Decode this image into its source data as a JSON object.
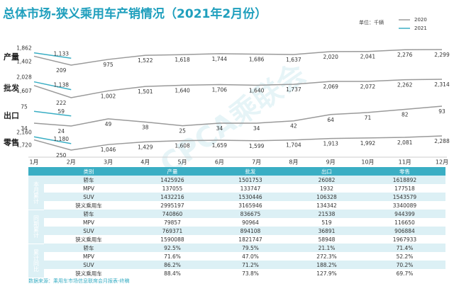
{
  "header": {
    "title": "总体市场-狭义乘用车产销情况（2021年2月份）",
    "unit": "单位：千辆",
    "watermark": "CPCA乘联会"
  },
  "chart_data": {
    "type": "line",
    "categories": [
      "1月",
      "2月",
      "3月",
      "4月",
      "5月",
      "6月",
      "7月",
      "8月",
      "9月",
      "10月",
      "11月",
      "12月"
    ],
    "legend": [
      {
        "name": "2020",
        "color": "#9a9a9a"
      },
      {
        "name": "2021",
        "color": "#3aaec4"
      }
    ],
    "panels": [
      {
        "label": "产量",
        "series": [
          {
            "values": [
              1402,
              209,
              975,
              1522,
              1618,
              1744,
              1686,
              1637,
              2020,
              2041,
              2276,
              2299
            ],
            "value_labels": [
              "1,402",
              "209",
              "975",
              "1,522",
              "1,618",
              "1,744",
              "1,686",
              "1,637",
              "2,020",
              "2,041",
              "2,276",
              "2,299"
            ]
          },
          {
            "values": [
              1862,
              1133,
              null,
              null,
              null,
              null,
              null,
              null,
              null,
              null,
              null,
              null
            ],
            "value_labels": [
              "1,862",
              "1,133",
              null,
              null,
              null,
              null,
              null,
              null,
              null,
              null,
              null,
              null
            ]
          }
        ]
      },
      {
        "label": "批发",
        "series": [
          {
            "values": [
              1607,
              222,
              1002,
              1501,
              1640,
              1706,
              1640,
              1737,
              2069,
              2072,
              2262,
              2314
            ],
            "value_labels": [
              "1,607",
              "222",
              "1,002",
              "1,501",
              "1,640",
              "1,706",
              "1,640",
              "1,737",
              "2,069",
              "2,072",
              "2,262",
              "2,314"
            ]
          },
          {
            "values": [
              2028,
              1138,
              null,
              null,
              null,
              null,
              null,
              null,
              null,
              null,
              null,
              null
            ],
            "value_labels": [
              "2,028",
              "1,138",
              null,
              null,
              null,
              null,
              null,
              null,
              null,
              null,
              null,
              null
            ]
          }
        ]
      },
      {
        "label": "出口",
        "series": [
          {
            "values": [
              34,
              24,
              49,
              38,
              25,
              34,
              34,
              42,
              64,
              71,
              82,
              93
            ]
          },
          {
            "values": [
              75,
              59,
              null,
              null,
              null,
              null,
              null,
              null,
              null,
              null,
              null,
              null
            ]
          }
        ]
      },
      {
        "label": "零售",
        "series": [
          {
            "values": [
              1720,
              250,
              1046,
              1429,
              1608,
              1659,
              1599,
              1704,
              1913,
              1992,
              2081,
              2288
            ],
            "value_labels": [
              "1,720",
              "250",
              "1,046",
              "1,429",
              "1,608",
              "1,659",
              "1,599",
              "1,704",
              "1,913",
              "1,992",
              "2,081",
              "2,288"
            ]
          },
          {
            "values": [
              2160,
              1180,
              null,
              null,
              null,
              null,
              null,
              null,
              null,
              null,
              null,
              null
            ],
            "value_labels": [
              "2,160",
              "1,180",
              null,
              null,
              null,
              null,
              null,
              null,
              null,
              null,
              null,
              null
            ]
          }
        ]
      }
    ]
  },
  "table": {
    "columns": [
      "类别",
      "产量",
      "批发",
      "出口",
      "零售"
    ],
    "groups": [
      {
        "label": "本月累计",
        "rows": [
          [
            "轿车",
            "1425926",
            "1501753",
            "26082",
            "1618892"
          ],
          [
            "MPV",
            "137055",
            "133747",
            "1932",
            "177518"
          ],
          [
            "SUV",
            "1432216",
            "1530446",
            "106328",
            "1543579"
          ],
          [
            "狭义乘用车",
            "2995197",
            "3165946",
            "134342",
            "3340089"
          ]
        ]
      },
      {
        "label": "同期累计",
        "rows": [
          [
            "轿车",
            "740860",
            "836675",
            "21538",
            "944399"
          ],
          [
            "MPV",
            "79857",
            "90964",
            "519",
            "116650"
          ],
          [
            "SUV",
            "769371",
            "894108",
            "36891",
            "906884"
          ],
          [
            "狭义乘用车",
            "1590088",
            "1821747",
            "58948",
            "1967933"
          ]
        ]
      },
      {
        "label": "累计同比",
        "rows": [
          [
            "轿车",
            "92.5%",
            "79.5%",
            "21.1%",
            "71.4%"
          ],
          [
            "MPV",
            "71.6%",
            "47.0%",
            "272.3%",
            "52.2%"
          ],
          [
            "SUV",
            "86.2%",
            "71.2%",
            "188.2%",
            "70.2%"
          ],
          [
            "狭义乘用车",
            "88.4%",
            "73.8%",
            "127.9%",
            "69.7%"
          ]
        ]
      }
    ]
  },
  "footer": {
    "source": "数据来源：乘用车市场信息联席会月报表-终稿"
  }
}
